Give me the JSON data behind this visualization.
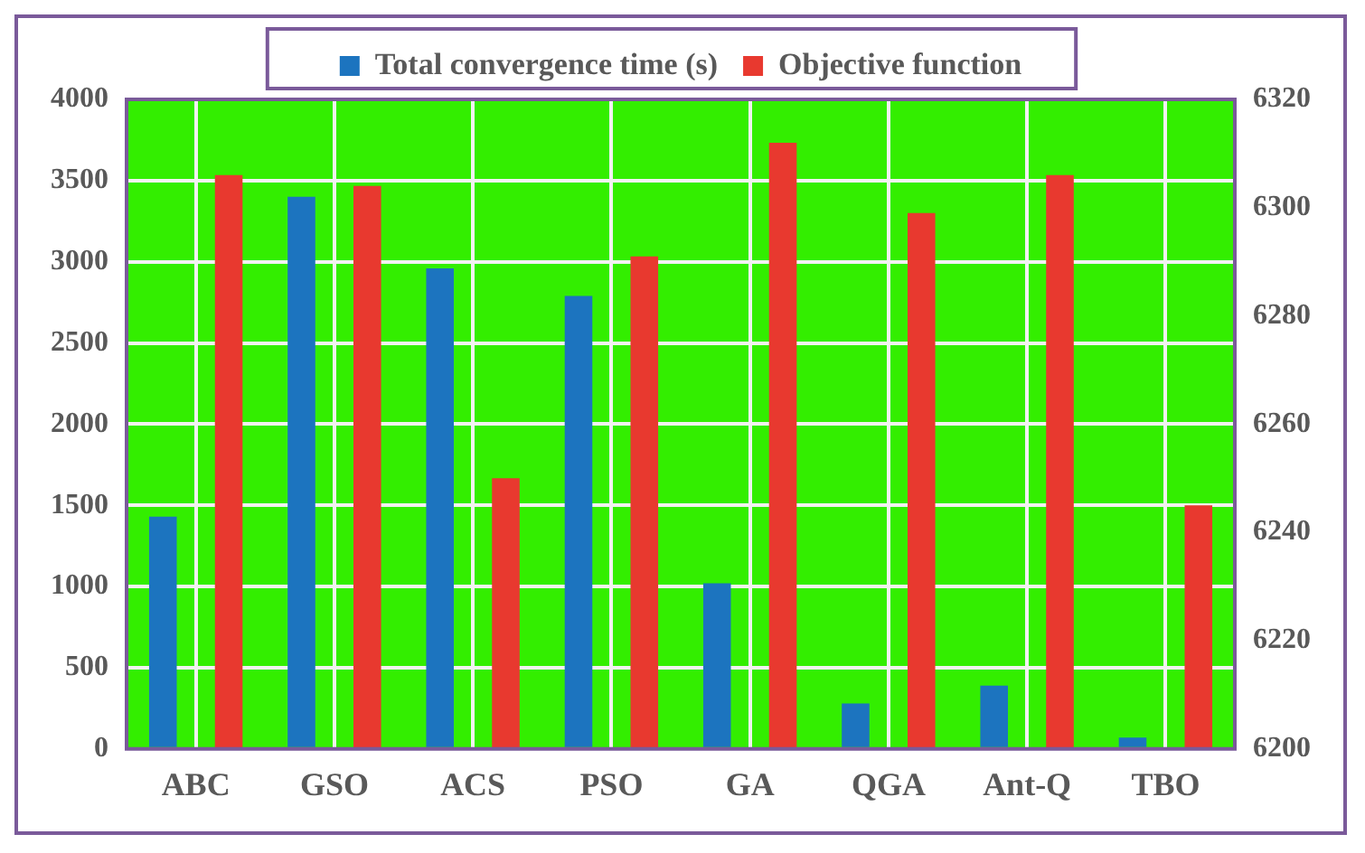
{
  "chart_data": {
    "type": "bar",
    "categories": [
      "ABC",
      "GSO",
      "ACS",
      "PSO",
      "GA",
      "QGA",
      "Ant-Q",
      "TBO"
    ],
    "series": [
      {
        "name": "Total convergence time (s)",
        "color": "#1c74bf",
        "values": [
          1430,
          3400,
          2960,
          2790,
          1020,
          280,
          390,
          70
        ]
      },
      {
        "name": "Objective function",
        "color": "#e8392f",
        "axis": "y2",
        "values": [
          6306,
          6304,
          6250,
          6291,
          6312,
          6299,
          6306,
          6245
        ]
      }
    ],
    "ylim": [
      0,
      4000
    ],
    "yticks": [
      0,
      500,
      1000,
      1500,
      2000,
      2500,
      3000,
      3500,
      4000
    ],
    "y2lim": [
      6200,
      6320
    ],
    "y2ticks": [
      6200,
      6220,
      6240,
      6260,
      6280,
      6300,
      6320
    ],
    "grid": true,
    "legend": "top"
  }
}
